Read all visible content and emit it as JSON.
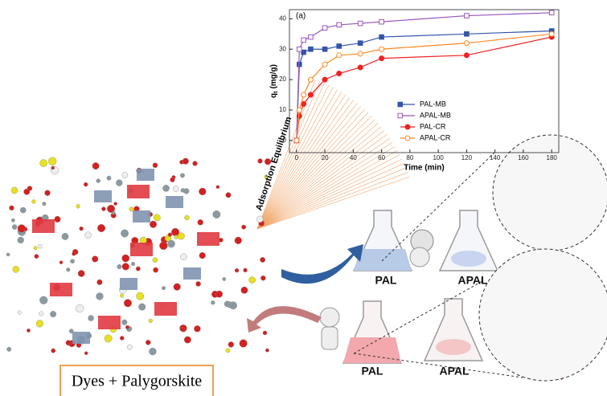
{
  "chart_data": {
    "type": "line",
    "panel_label": "(a)",
    "x_label": "Time (min)",
    "y_label": "q",
    "y_label_sub": "t",
    "y_label_unit": "(mg/g)",
    "x": [
      0,
      2,
      5,
      10,
      20,
      30,
      45,
      60,
      120,
      180
    ],
    "series": [
      {
        "name": "PAL-MB",
        "color": "#3355aa",
        "marker": "square",
        "filled": true,
        "values": [
          0,
          25,
          29,
          30,
          30,
          31,
          32,
          34,
          35,
          36
        ]
      },
      {
        "name": "APAL-MB",
        "color": "#9955bb",
        "marker": "square",
        "filled": false,
        "values": [
          0,
          30,
          33,
          34,
          37,
          38,
          38.5,
          39,
          41,
          42
        ]
      },
      {
        "name": "PAL-CR",
        "color": "#ee2222",
        "marker": "circle",
        "filled": true,
        "values": [
          0,
          8,
          12,
          15,
          20,
          22,
          24,
          27,
          28,
          34
        ]
      },
      {
        "name": "APAL-CR",
        "color": "#ff8822",
        "marker": "circle",
        "filled": false,
        "values": [
          0,
          10,
          15,
          20,
          25,
          28,
          28.5,
          30,
          32,
          35
        ]
      }
    ],
    "xlim": [
      -5,
      185
    ],
    "ylim": [
      -4,
      43
    ],
    "xticks": [
      0,
      20,
      40,
      60,
      80,
      100,
      120,
      140,
      160,
      180
    ],
    "yticks": [
      0,
      10,
      20,
      30,
      40
    ],
    "legend": "lower right"
  },
  "annotation": "Adsorption Equilibrium",
  "flask_labels": [
    "PAL",
    "APAL",
    "PAL",
    "APAL"
  ],
  "caption": "Dyes + Palygorskite"
}
